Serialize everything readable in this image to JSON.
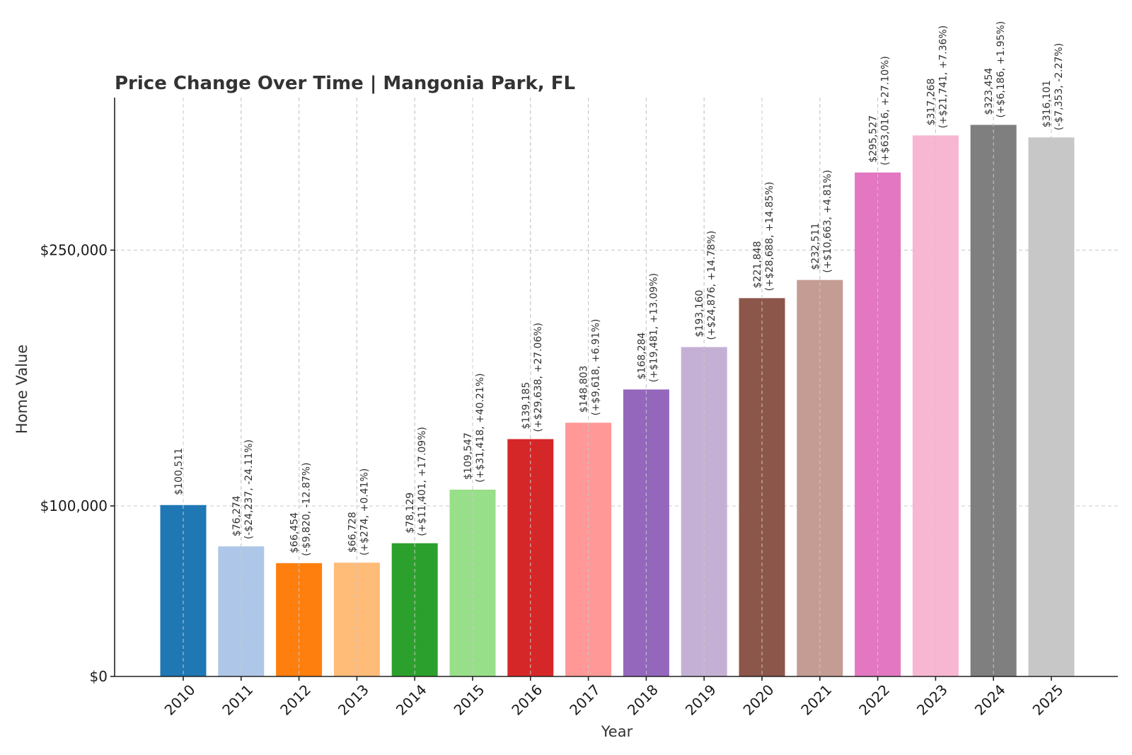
{
  "chart_data": {
    "type": "bar",
    "title": "Price Change Over Time | Mangonia Park, FL",
    "xlabel": "Year",
    "ylabel": "Home Value",
    "ylim": [
      0,
      340000
    ],
    "yticks": [
      0,
      100000,
      250000
    ],
    "ytick_labels": [
      "$0",
      "$100,000",
      "$250,000"
    ],
    "grid": true,
    "categories": [
      "2010",
      "2011",
      "2012",
      "2013",
      "2014",
      "2015",
      "2016",
      "2017",
      "2018",
      "2019",
      "2020",
      "2021",
      "2022",
      "2023",
      "2024",
      "2025"
    ],
    "values": [
      100511,
      76274,
      66454,
      66728,
      78129,
      109547,
      139185,
      148803,
      168284,
      193160,
      221848,
      232511,
      295527,
      317268,
      323454,
      316101
    ],
    "value_labels": [
      "$100,511",
      "$76,274",
      "$66,454",
      "$66,728",
      "$78,129",
      "$109,547",
      "$139,185",
      "$148,803",
      "$168,284",
      "$193,160",
      "$221,848",
      "$232,511",
      "$295,527",
      "$317,268",
      "$323,454",
      "$316,101"
    ],
    "change_labels": [
      "",
      "(-$24,237, -24.11%)",
      "(-$9,820, -12.87%)",
      "(+$274, +0.41%)",
      "(+$11,401, +17.09%)",
      "(+$31,418, +40.21%)",
      "(+$29,638, +27.06%)",
      "(+$9,618, +6.91%)",
      "(+$19,481, +13.09%)",
      "(+$24,876, +14.78%)",
      "(+$28,688, +14.85%)",
      "(+$10,663, +4.81%)",
      "(+$63,016, +27.10%)",
      "(+$21,741, +7.36%)",
      "(+$6,186, +1.95%)",
      "(-$7,353, -2.27%)"
    ],
    "colors": [
      "#1f77b4",
      "#aec7e8",
      "#ff7f0e",
      "#ffbb78",
      "#2ca02c",
      "#98df8a",
      "#d62728",
      "#ff9896",
      "#9467bd",
      "#c5b0d5",
      "#8c564b",
      "#c49c94",
      "#e377c2",
      "#f7b6d2",
      "#7f7f7f",
      "#c7c7c7"
    ]
  }
}
